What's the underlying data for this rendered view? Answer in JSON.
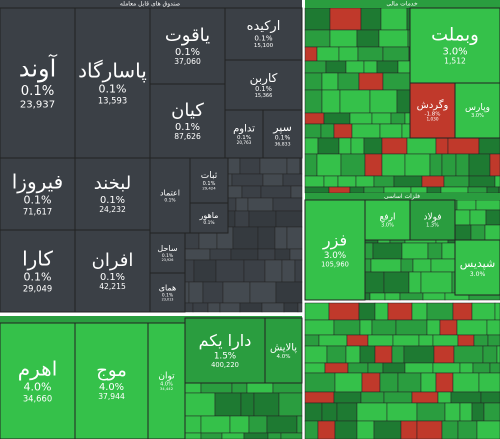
{
  "headers": [
    "صندوق های قابل معامله",
    "خدمات مالی",
    "فلزات اساسی"
  ],
  "tiles": [
    {
      "name": "آوند",
      "change": "0.1%",
      "volume": "23,937"
    },
    {
      "name": "پاسارگاد",
      "change": "0.1%",
      "volume": "13,593"
    },
    {
      "name": "یاقوت",
      "change": "0.1%",
      "volume": "37,060"
    },
    {
      "name": "ارکیده",
      "change": "0.1%",
      "volume": "15,100"
    },
    {
      "name": "کاربن",
      "change": "0.1%",
      "volume": "15,366"
    },
    {
      "name": "کیان",
      "change": "0.1%",
      "volume": "87,626"
    },
    {
      "name": "تداوم",
      "change": "0.1%",
      "volume": "20,763"
    },
    {
      "name": "سپر",
      "change": "0.1%",
      "volume": "36,833"
    },
    {
      "name": "فیروزا",
      "change": "0.1%",
      "volume": "71,617"
    },
    {
      "name": "لبخند",
      "change": "0.1%",
      "volume": "24,232"
    },
    {
      "name": "کارا",
      "change": "0.1%",
      "volume": "29,049"
    },
    {
      "name": "افران",
      "change": "0.1%",
      "volume": "42,215"
    },
    {
      "name": "ثبات",
      "change": "0.1%",
      "volume": "29,424"
    },
    {
      "name": "اعتماد",
      "change": "0.1%"
    },
    {
      "name": "ماهور",
      "change": "0.1%"
    },
    {
      "name": "ساحل",
      "change": "0.1%",
      "volume": "23,926"
    },
    {
      "name": "همای",
      "change": "0.1%",
      "volume": "23,013"
    },
    {
      "name": "اهرم",
      "change": "4.0%",
      "volume": "34,660"
    },
    {
      "name": "موج",
      "change": "4.0%",
      "volume": "37,944"
    },
    {
      "name": "توان",
      "change": "4.0%",
      "volume": "34,442"
    },
    {
      "name": "دارا یکم",
      "change": "1.5%",
      "volume": "400,220"
    },
    {
      "name": "پالایش",
      "change": "4.0%"
    },
    {
      "name": "وبملت",
      "change": "3.0%",
      "volume": "1,512"
    },
    {
      "name": "وگردش",
      "change": "-1.8%",
      "volume": "1,030"
    },
    {
      "name": "وپارس",
      "change": "3.0%"
    },
    {
      "name": "فزر",
      "change": "3.0%",
      "volume": "105,960"
    },
    {
      "name": "ارفع",
      "change": "3.0%"
    },
    {
      "name": "فولاد",
      "change": "1.3%"
    },
    {
      "name": "شپدیس",
      "change": "3.0%"
    }
  ]
}
